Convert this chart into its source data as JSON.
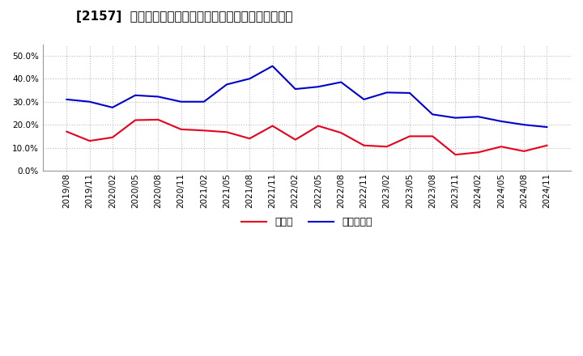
{
  "title": "[2157]  現須金、有利子負債の総資産に対する比率の推移",
  "x_labels": [
    "2019/08",
    "2019/11",
    "2020/02",
    "2020/05",
    "2020/08",
    "2020/11",
    "2021/02",
    "2021/05",
    "2021/08",
    "2021/11",
    "2022/02",
    "2022/05",
    "2022/08",
    "2022/11",
    "2023/02",
    "2023/05",
    "2023/08",
    "2023/11",
    "2024/02",
    "2024/05",
    "2024/08",
    "2024/11"
  ],
  "cash": [
    0.17,
    0.13,
    0.145,
    0.22,
    0.222,
    0.18,
    0.175,
    0.168,
    0.14,
    0.195,
    0.135,
    0.195,
    0.165,
    0.11,
    0.105,
    0.15,
    0.15,
    0.07,
    0.08,
    0.105,
    0.085,
    0.11
  ],
  "debt": [
    0.31,
    0.3,
    0.275,
    0.328,
    0.322,
    0.3,
    0.3,
    0.375,
    0.4,
    0.455,
    0.355,
    0.365,
    0.385,
    0.31,
    0.34,
    0.338,
    0.245,
    0.23,
    0.235,
    0.215,
    0.2,
    0.19
  ],
  "cash_color": "#e8001c",
  "debt_color": "#0000cc",
  "ylim": [
    0.0,
    0.55
  ],
  "yticks": [
    0.0,
    0.1,
    0.2,
    0.3,
    0.4,
    0.5
  ],
  "legend_cash": "現須金",
  "legend_debt": "有利子負債",
  "bg_color": "#ffffff",
  "grid_color": "#bbbbbb",
  "title_fontsize": 11,
  "axis_fontsize": 7.5,
  "legend_fontsize": 9
}
